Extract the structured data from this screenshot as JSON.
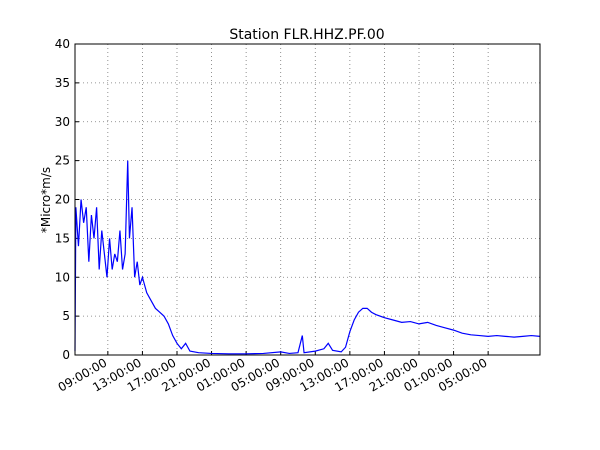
{
  "chart_data": {
    "type": "line",
    "title": "Station FLR.HHZ.PF.00",
    "y_label": "*Micro*m/s",
    "x": [
      5.2,
      5.3,
      5.6,
      5.9,
      6.2,
      6.5,
      6.8,
      7.1,
      7.4,
      7.7,
      8.0,
      8.3,
      8.6,
      8.9,
      9.2,
      9.5,
      9.8,
      10.1,
      10.4,
      10.7,
      11.0,
      11.3,
      11.5,
      11.8,
      12.1,
      12.4,
      12.7,
      13.0,
      13.5,
      14.0,
      14.5,
      15.0,
      15.5,
      16.0,
      16.5,
      17.0,
      17.5,
      18.0,
      18.5,
      19.5,
      21,
      23,
      25,
      27,
      29,
      30,
      31,
      31.5,
      31.7,
      33,
      34,
      34.5,
      35,
      36,
      36.5,
      37,
      37.5,
      38,
      38.5,
      39,
      39.5,
      40,
      41,
      42,
      43,
      44,
      45,
      46,
      47,
      48,
      49,
      50,
      51,
      52,
      53,
      54,
      55,
      56,
      57,
      58,
      59
    ],
    "series": [
      {
        "color": "#0000ff",
        "values": [
          0.5,
          19,
          14,
          20,
          17,
          19,
          12,
          18,
          15,
          19,
          11,
          16,
          13,
          10,
          15,
          11,
          13,
          12,
          16,
          11,
          13,
          25,
          15,
          19,
          10,
          12,
          9,
          10,
          8,
          7,
          6,
          5.5,
          5,
          4,
          2.5,
          1.5,
          0.8,
          1.5,
          0.5,
          0.3,
          0.2,
          0.15,
          0.15,
          0.2,
          0.4,
          0.2,
          0.3,
          2.5,
          0.3,
          0.5,
          0.8,
          1.5,
          0.6,
          0.4,
          1,
          3,
          4.5,
          5.5,
          6,
          6,
          5.5,
          5.2,
          4.8,
          4.5,
          4.2,
          4.3,
          4,
          4.2,
          3.8,
          3.5,
          3.2,
          2.8,
          2.6,
          2.5,
          2.4,
          2.5,
          2.4,
          2.3,
          2.4,
          2.5,
          2.4
        ]
      }
    ],
    "xlim": [
      5.2,
      59
    ],
    "xticks": [
      {
        "value": 9,
        "label": "09:00:00"
      },
      {
        "value": 13,
        "label": "13:00:00"
      },
      {
        "value": 17,
        "label": "17:00:00"
      },
      {
        "value": 21,
        "label": "21:00:00"
      },
      {
        "value": 25,
        "label": "01:00:00"
      },
      {
        "value": 29,
        "label": "05:00:00"
      },
      {
        "value": 33,
        "label": "09:00:00"
      },
      {
        "value": 37,
        "label": "13:00:00"
      },
      {
        "value": 41,
        "label": "17:00:00"
      },
      {
        "value": 45,
        "label": "21:00:00"
      },
      {
        "value": 49,
        "label": "01:00:00"
      },
      {
        "value": 53,
        "label": "05:00:00"
      }
    ],
    "ylim": [
      0,
      40
    ],
    "yticks": [
      0,
      5,
      10,
      15,
      20,
      25,
      30,
      35,
      40
    ],
    "grid": true
  }
}
